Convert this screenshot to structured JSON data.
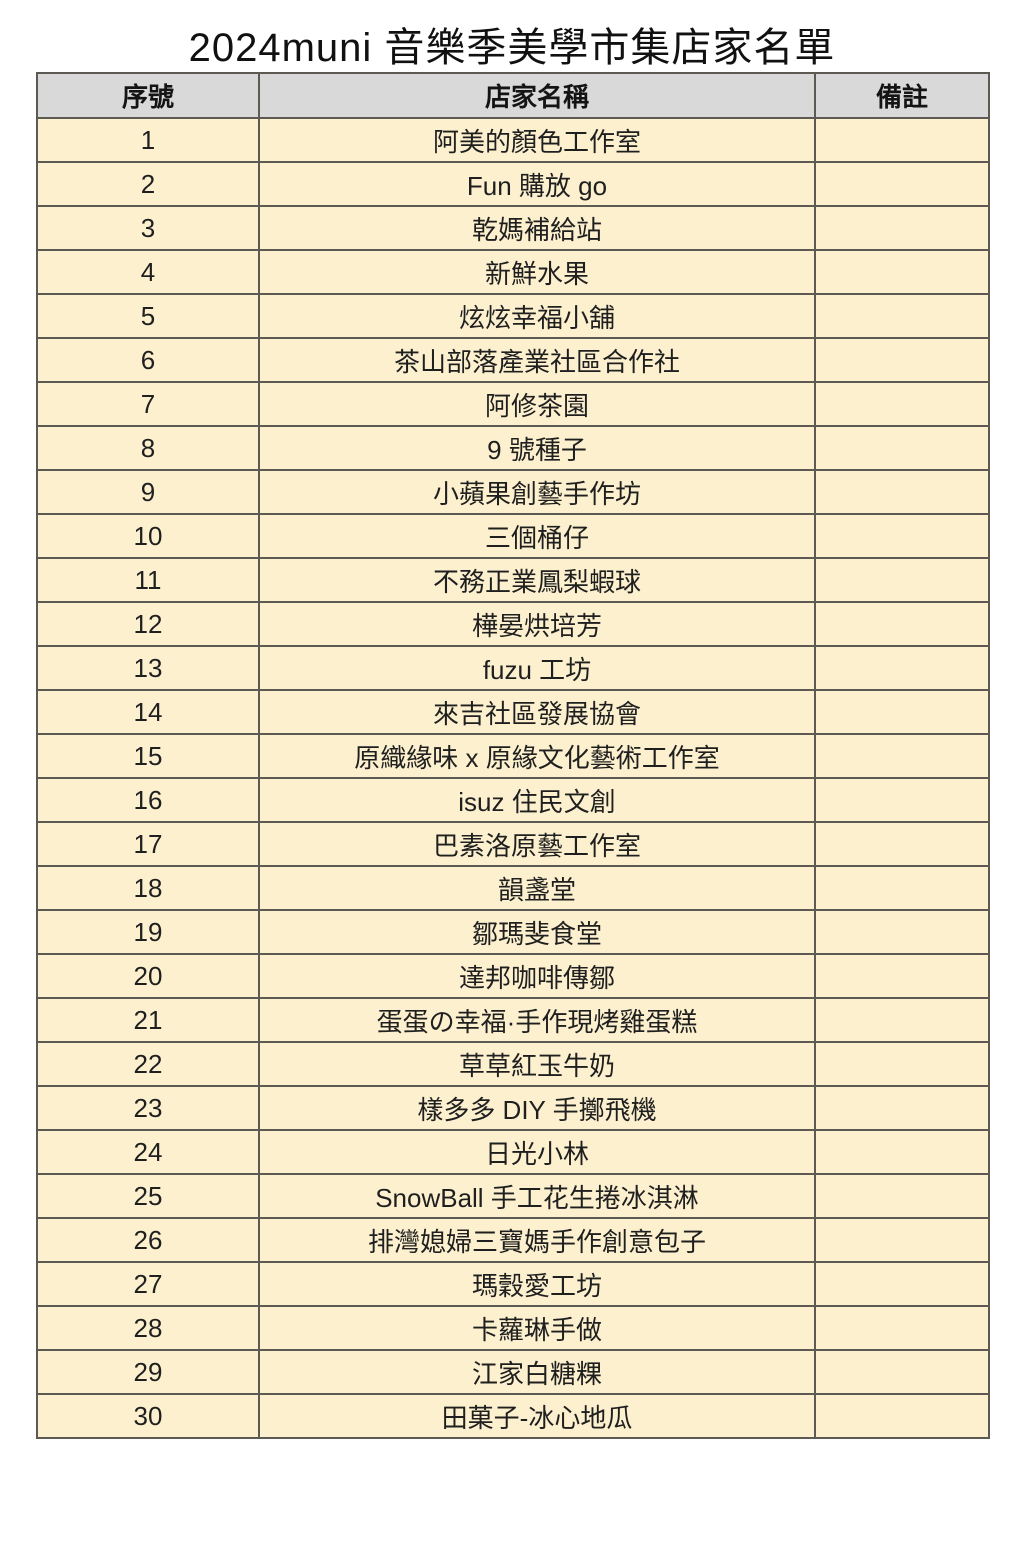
{
  "page": {
    "title": "2024muni 音樂季美學市集店家名單"
  },
  "colors": {
    "header_bg": "#d9d9d9",
    "row_bg": "#fcf0cf",
    "border": "#5c5a52",
    "page_bg": "#ffffff"
  },
  "table": {
    "headers": [
      "序號",
      "店家名稱",
      "備註"
    ],
    "rows": [
      {
        "no": "1",
        "name": "阿美的顏色工作室",
        "note": ""
      },
      {
        "no": "2",
        "name": "Fun 購放 go",
        "note": ""
      },
      {
        "no": "3",
        "name": "乾媽補給站",
        "note": ""
      },
      {
        "no": "4",
        "name": "新鮮水果",
        "note": ""
      },
      {
        "no": "5",
        "name": "炫炫幸福小舖",
        "note": ""
      },
      {
        "no": "6",
        "name": "茶山部落產業社區合作社",
        "note": ""
      },
      {
        "no": "7",
        "name": "阿修茶園",
        "note": ""
      },
      {
        "no": "8",
        "name": "9 號種子",
        "note": ""
      },
      {
        "no": "9",
        "name": "小蘋果創藝手作坊",
        "note": ""
      },
      {
        "no": "10",
        "name": "三個桶仔",
        "note": ""
      },
      {
        "no": "11",
        "name": "不務正業鳳梨蝦球",
        "note": ""
      },
      {
        "no": "12",
        "name": "樺晏烘培芳",
        "note": ""
      },
      {
        "no": "13",
        "name": "fuzu 工坊",
        "note": ""
      },
      {
        "no": "14",
        "name": "來吉社區發展協會",
        "note": ""
      },
      {
        "no": "15",
        "name": "原織緣味 x 原緣文化藝術工作室",
        "note": ""
      },
      {
        "no": "16",
        "name": "isuz 住民文創",
        "note": ""
      },
      {
        "no": "17",
        "name": "巴素洛原藝工作室",
        "note": ""
      },
      {
        "no": "18",
        "name": "韻盞堂",
        "note": ""
      },
      {
        "no": "19",
        "name": "鄒瑪斐食堂",
        "note": ""
      },
      {
        "no": "20",
        "name": "達邦咖啡傳鄒",
        "note": ""
      },
      {
        "no": "21",
        "name": "蛋蛋の幸福·手作現烤雞蛋糕",
        "note": ""
      },
      {
        "no": "22",
        "name": "草草紅玉牛奶",
        "note": ""
      },
      {
        "no": "23",
        "name": "樣多多 DIY 手擲飛機",
        "note": ""
      },
      {
        "no": "24",
        "name": "日光小林",
        "note": ""
      },
      {
        "no": "25",
        "name": "SnowBall 手工花生捲冰淇淋",
        "note": ""
      },
      {
        "no": "26",
        "name": "排灣媳婦三寶媽手作創意包子",
        "note": ""
      },
      {
        "no": "27",
        "name": "瑪穀愛工坊",
        "note": ""
      },
      {
        "no": "28",
        "name": "卡蘿琳手做",
        "note": ""
      },
      {
        "no": "29",
        "name": "江家白糖粿",
        "note": ""
      },
      {
        "no": "30",
        "name": "田菓子-冰心地瓜",
        "note": ""
      }
    ]
  }
}
